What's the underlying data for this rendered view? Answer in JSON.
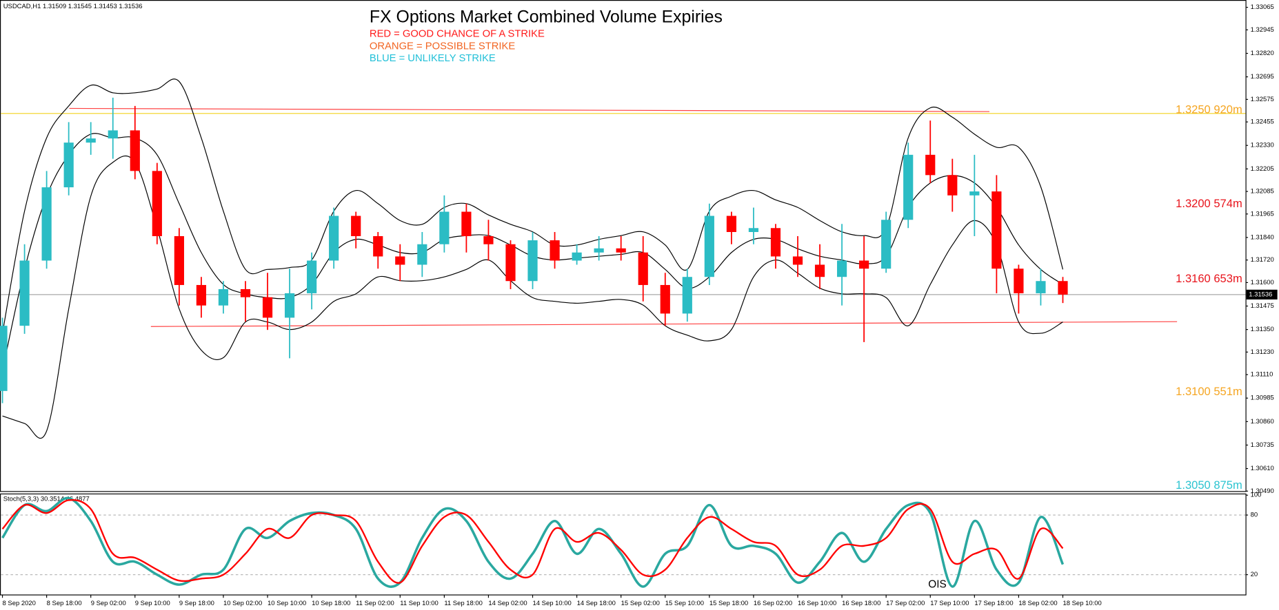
{
  "chart_data": {
    "type": "candlestick",
    "header": "USDCAD,H1 1.31509 1.31545 1.31453 1.31536",
    "title": "FX Options Market Combined Volume Expiries",
    "notes": [
      {
        "text": "RED = GOOD CHANCE OF A STRIKE",
        "color": "#ff1a1a"
      },
      {
        "text": "ORANGE = POSSIBLE STRIKE",
        "color": "#f26522"
      },
      {
        "text": "BLUE = UNLIKELY STRIKE",
        "color": "#22c0d8"
      }
    ],
    "categories": [
      "8 Sep 2020",
      null,
      "8 Sep 18:00",
      null,
      "9 Sep 02:00",
      null,
      "9 Sep 10:00",
      null,
      "9 Sep 18:00",
      null,
      "10 Sep 02:00",
      null,
      "10 Sep 10:00",
      null,
      "10 Sep 18:00",
      null,
      "11 Sep 02:00",
      null,
      "11 Sep 10:00",
      null,
      "11 Sep 18:00",
      null,
      "14 Sep 02:00",
      null,
      "14 Sep 10:00",
      null,
      "14 Sep 18:00",
      null,
      "15 Sep 02:00",
      null,
      "15 Sep 10:00",
      null,
      "15 Sep 18:00",
      null,
      "16 Sep 02:00",
      null,
      "16 Sep 10:00",
      null,
      "16 Sep 18:00",
      null,
      "17 Sep 02:00",
      null,
      "17 Sep 10:00",
      null,
      "17 Sep 18:00",
      null,
      "18 Sep 02:00",
      null,
      "18 Sep 10:00"
    ],
    "open": [
      1.31023,
      1.3137,
      1.31717,
      1.32107,
      1.32345,
      1.32367,
      1.3241,
      1.32194,
      1.31847,
      1.31587,
      1.31478,
      1.31565,
      1.31522,
      1.31413,
      1.31543,
      1.31717,
      1.31955,
      1.31847,
      1.31739,
      1.31695,
      1.31804,
      1.31977,
      1.31847,
      1.31804,
      1.31608,
      1.31825,
      1.31717,
      1.3176,
      1.31782,
      1.3176,
      1.31587,
      1.31435,
      1.3163,
      1.31955,
      1.31869,
      1.3189,
      1.31739,
      1.31695,
      1.3163,
      1.31717,
      1.31674,
      1.31934,
      1.3228,
      1.32172,
      1.32064,
      1.32085,
      1.31674,
      1.31543,
      1.31608
    ],
    "high": [
      1.31413,
      1.31804,
      1.32194,
      1.32454,
      1.32454,
      1.32584,
      1.3254,
      1.32237,
      1.3189,
      1.3163,
      1.31608,
      1.31608,
      1.31652,
      1.31674,
      1.3176,
      1.31999,
      1.31977,
      1.31869,
      1.31804,
      1.31869,
      1.32064,
      1.3202,
      1.31934,
      1.31825,
      1.31869,
      1.31869,
      1.31804,
      1.31847,
      1.31847,
      1.31847,
      1.31652,
      1.31674,
      1.3202,
      1.31977,
      1.31999,
      1.31912,
      1.31847,
      1.31804,
      1.31912,
      1.31847,
      1.31977,
      1.32345,
      1.32462,
      1.32259,
      1.3228,
      1.32172,
      1.31695,
      1.31674,
      1.3163
    ],
    "low": [
      1.30958,
      1.31327,
      1.31674,
      1.32064,
      1.3228,
      1.32259,
      1.3215,
      1.31804,
      1.31478,
      1.31413,
      1.31435,
      1.31392,
      1.31348,
      1.31197,
      1.31457,
      1.31674,
      1.31782,
      1.31674,
      1.31608,
      1.3163,
      1.3176,
      1.3176,
      1.31717,
      1.31565,
      1.31565,
      1.31674,
      1.31695,
      1.31717,
      1.31717,
      1.315,
      1.3137,
      1.31392,
      1.31587,
      1.31804,
      1.31804,
      1.31674,
      1.3163,
      1.31565,
      1.31478,
      1.31283,
      1.31652,
      1.3189,
      1.32129,
      1.31977,
      1.31847,
      1.31543,
      1.31435,
      1.31478,
      1.31491
    ],
    "close": [
      1.3137,
      1.31717,
      1.32107,
      1.32345,
      1.32367,
      1.3241,
      1.32194,
      1.31847,
      1.31587,
      1.31478,
      1.31565,
      1.31522,
      1.31413,
      1.31543,
      1.31717,
      1.31955,
      1.31847,
      1.31739,
      1.31695,
      1.31804,
      1.31977,
      1.31847,
      1.31804,
      1.31608,
      1.31825,
      1.31717,
      1.3176,
      1.31782,
      1.3176,
      1.31587,
      1.31435,
      1.3163,
      1.31955,
      1.31869,
      1.3189,
      1.31739,
      1.31695,
      1.3163,
      1.31717,
      1.31674,
      1.31934,
      1.3228,
      1.32172,
      1.32064,
      1.32085,
      1.31674,
      1.31543,
      1.31608,
      1.31536
    ],
    "bull_color": "#2bbcc4",
    "bear_color": "#ff0000",
    "bollinger": {
      "color": "#000000",
      "upper": [
        1.3133,
        1.3198,
        1.3237,
        1.3254,
        1.3265,
        1.3261,
        1.3261,
        1.3263,
        1.3267,
        1.3237,
        1.3198,
        1.3167,
        1.3167,
        1.3168,
        1.3172,
        1.3198,
        1.3209,
        1.3202,
        1.3193,
        1.3191,
        1.32,
        1.3202,
        1.3196,
        1.3191,
        1.3187,
        1.318,
        1.318,
        1.3183,
        1.3185,
        1.3187,
        1.318,
        1.3167,
        1.3198,
        1.3206,
        1.3209,
        1.3204,
        1.32,
        1.3193,
        1.3187,
        1.3185,
        1.3189,
        1.3237,
        1.3253,
        1.3248,
        1.3239,
        1.3232,
        1.3232,
        1.3211,
        1.3167
      ],
      "middle": [
        1.3113,
        1.3167,
        1.3206,
        1.3228,
        1.3239,
        1.3237,
        1.3237,
        1.3228,
        1.3202,
        1.3176,
        1.3159,
        1.3154,
        1.3152,
        1.3152,
        1.3159,
        1.3176,
        1.3183,
        1.318,
        1.3176,
        1.3176,
        1.3183,
        1.3185,
        1.3185,
        1.318,
        1.3174,
        1.3172,
        1.3173,
        1.3174,
        1.3175,
        1.3176,
        1.3167,
        1.3157,
        1.3163,
        1.3176,
        1.3183,
        1.3183,
        1.3178,
        1.3174,
        1.3172,
        1.317,
        1.3174,
        1.32,
        1.3213,
        1.3217,
        1.3213,
        1.32,
        1.318,
        1.3167,
        1.3159
      ],
      "lower": [
        1.3089,
        1.3085,
        1.3081,
        1.3146,
        1.3206,
        1.3224,
        1.3224,
        1.3189,
        1.3146,
        1.3124,
        1.312,
        1.3139,
        1.3139,
        1.3135,
        1.3139,
        1.315,
        1.3154,
        1.3163,
        1.3161,
        1.3161,
        1.3163,
        1.3167,
        1.3172,
        1.3161,
        1.3152,
        1.315,
        1.3149,
        1.315,
        1.3151,
        1.3148,
        1.3137,
        1.3132,
        1.3129,
        1.3135,
        1.3163,
        1.3172,
        1.3165,
        1.3157,
        1.3154,
        1.3154,
        1.3152,
        1.3137,
        1.3159,
        1.318,
        1.3193,
        1.318,
        1.3139,
        1.3133,
        1.3139
      ]
    },
    "ylim": [
      1.3049,
      1.33104
    ],
    "yticks": [
      1.33065,
      1.32945,
      {
        "value": 1.3282,
        "label": "1.32820"
      },
      1.32695,
      1.32575,
      1.32455,
      {
        "value": 1.3233,
        "label": "1.32330"
      },
      1.32205,
      1.32085,
      1.31965,
      {
        "value": 1.3184,
        "label": "1.31840"
      },
      {
        "value": 1.3172,
        "label": "1.31720"
      },
      {
        "value": 1.316,
        "label": "1.31600"
      },
      1.31475,
      {
        "value": 1.3135,
        "label": "1.31350"
      },
      {
        "value": 1.3123,
        "label": "1.31230"
      },
      {
        "value": 1.3111,
        "label": "1.31110"
      },
      1.30985,
      {
        "value": 1.3086,
        "label": "1.30860"
      },
      1.30735,
      {
        "value": 1.3061,
        "label": "1.30610"
      },
      {
        "value": 1.3049,
        "label": "1.30490"
      }
    ],
    "last_price": 1.31536,
    "last_price_color": "#a8a8a8",
    "hlines": [
      {
        "value": 1.325,
        "color": "#f2d21b"
      }
    ],
    "trendlines": [
      {
        "color": "#ff4040",
        "values": [
          1.32527,
          1.3251
        ]
      },
      {
        "color": "#ff4040",
        "values": [
          1.31366,
          1.31392
        ]
      }
    ],
    "annotations": [
      {
        "text": "1.3250 920m",
        "level": 1.325,
        "color": "#f5a623"
      },
      {
        "text": "1.3200 574m",
        "level": 1.32,
        "color": "#e8141c"
      },
      {
        "text": "1.3160 653m",
        "level": 1.316,
        "color": "#e8141c"
      },
      {
        "text": "1.3100 551m",
        "level": 1.31,
        "color": "#f5a623"
      },
      {
        "text": "1.3050 875m",
        "level": 1.305,
        "color": "#2cc4d0"
      }
    ],
    "stochastic": {
      "label": "Stoch(5,3,3) 30.3514 46.4877",
      "ylim": [
        0,
        100
      ],
      "yticks": [
        100,
        80,
        20
      ],
      "levels": [
        80,
        20
      ],
      "k": {
        "color": "#2aa8a0",
        "values": [
          57,
          90,
          84,
          97,
          74,
          33,
          33,
          20,
          10,
          20,
          25,
          66,
          57,
          74,
          82,
          80,
          66,
          16,
          12,
          57,
          86,
          74,
          33,
          16,
          41,
          74,
          41,
          66,
          41,
          8,
          41,
          49,
          90,
          49,
          49,
          41,
          12,
          33,
          62,
          33,
          66,
          90,
          82,
          8,
          74,
          25,
          12,
          78,
          30.35
        ]
      },
      "d": {
        "color": "#ff0000",
        "values": [
          66,
          90,
          82,
          95,
          86,
          41,
          37,
          25,
          14,
          16,
          20,
          41,
          66,
          57,
          80,
          80,
          74,
          33,
          12,
          49,
          78,
          80,
          53,
          25,
          20,
          66,
          53,
          62,
          45,
          20,
          25,
          57,
          78,
          66,
          53,
          49,
          20,
          25,
          49,
          49,
          57,
          86,
          86,
          33,
          41,
          45,
          16,
          66,
          46.49
        ]
      }
    },
    "watermark": "OIS"
  }
}
